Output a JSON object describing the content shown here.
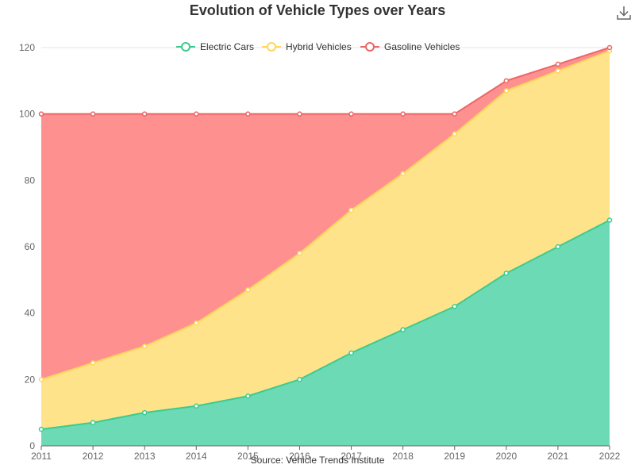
{
  "chart_data": {
    "type": "area",
    "stacked": true,
    "title": "Evolution of Vehicle Types over Years",
    "source": "Source: Vehicle Trends Institute",
    "categories": [
      "2011",
      "2012",
      "2013",
      "2014",
      "2015",
      "2016",
      "2017",
      "2018",
      "2019",
      "2020",
      "2021",
      "2022"
    ],
    "ylim": [
      0,
      120
    ],
    "yticks": [
      0,
      20,
      40,
      60,
      80,
      100,
      120
    ],
    "grid": true,
    "legend_position": "top",
    "series": [
      {
        "name": "Electric Cars",
        "color": "#3ccb8f",
        "fill": "#6ddab6",
        "values": [
          5,
          7,
          10,
          12,
          15,
          20,
          28,
          35,
          42,
          52,
          60,
          68
        ]
      },
      {
        "name": "Hybrid Vehicles",
        "color": "#fdd65a",
        "fill": "#ffe38a",
        "values": [
          15,
          18,
          20,
          25,
          32,
          38,
          43,
          47,
          52,
          55,
          53,
          51
        ]
      },
      {
        "name": "Gasoline Vehicles",
        "color": "#ec6666",
        "fill": "#ff9090",
        "values": [
          80,
          75,
          70,
          63,
          53,
          42,
          29,
          18,
          6,
          3,
          2,
          1
        ]
      }
    ]
  },
  "toolbar": {
    "download_icon": "download-icon"
  }
}
